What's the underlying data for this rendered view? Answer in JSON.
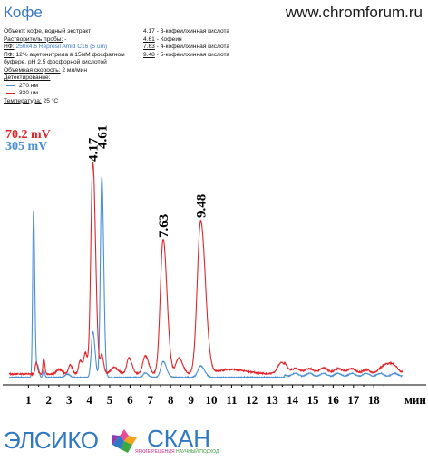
{
  "page": {
    "title": "Кофе",
    "site": "www.chromforum.ru"
  },
  "meta": {
    "object_label": "Объект:",
    "object_value": "кофе, водный экстракт",
    "solvent_label": "Растворитель пробы:",
    "solvent_value": "-",
    "sp_label": "НФ:",
    "sp_value": "250x4.6 Reprosil Amid C16 (5 um)",
    "mp_label": "ПФ:",
    "mp_value_1": "12% ацетонитрила в 15мМ фосфатном",
    "mp_value_2": "буфере, pH 2.5 фосфорной кислотой",
    "flow_label": "Объемная скорость:",
    "flow_value": "2 мл/мин",
    "detect_label": "Детектирование:",
    "detect_270": "270 нм",
    "detect_330": "330 нм",
    "temp_label": "Температура:",
    "temp_value": "25 °C"
  },
  "peaks_list": [
    {
      "rt": "4.17",
      "name": "- 3-кофеилхинная кислота"
    },
    {
      "rt": "4.61",
      "name": "- Кофеин"
    },
    {
      "rt": "7.63",
      "name": "- 4-кофеилхинная кислота"
    },
    {
      "rt": "9.48",
      "name": "- 5-кофеилхинная кислота"
    }
  ],
  "logo": {
    "left": "ЭЛСИКО",
    "right": "СКАН",
    "tag_pink": "ЯРКИЕ РЕШЕНИЯ",
    "tag_green": "НАУЧНЫЙ ПОДХОД"
  },
  "colors": {
    "trace_330": "#e0262b",
    "trace_270": "#4a8fd6",
    "axis": "#000000"
  },
  "chart_data": {
    "type": "line",
    "xlabel": "мин",
    "xlim": [
      0,
      20
    ],
    "x_ticks": [
      1,
      2,
      3,
      4,
      5,
      6,
      7,
      8,
      9,
      10,
      11,
      12,
      13,
      14,
      15,
      16,
      17,
      18
    ],
    "x_tick_labels": [
      "1",
      "2",
      "3",
      "4",
      "5",
      "6",
      "7",
      "8",
      "9",
      "10",
      "11",
      "12",
      "13",
      "14",
      "15",
      "16",
      "17",
      "18"
    ],
    "scale_labels": [
      {
        "text": "70.2 mV",
        "series": "330 нм"
      },
      {
        "text": "305 mV",
        "series": "270 нм"
      }
    ],
    "peak_labels": [
      {
        "x": 4.17,
        "text": "4.17"
      },
      {
        "x": 4.61,
        "text": "4.61"
      },
      {
        "x": 7.63,
        "text": "7.63"
      },
      {
        "x": 9.48,
        "text": "9.48"
      }
    ],
    "series": [
      {
        "name": "330 нм",
        "color": "#e0262b",
        "baseline": 0.02,
        "peaks": [
          {
            "x": 1.38,
            "h": 0.05,
            "w": 0.05
          },
          {
            "x": 1.75,
            "h": 0.07,
            "w": 0.04
          },
          {
            "x": 2.5,
            "h": 0.02,
            "w": 0.12
          },
          {
            "x": 3.05,
            "h": 0.04,
            "w": 0.08
          },
          {
            "x": 3.55,
            "h": 0.06,
            "w": 0.08
          },
          {
            "x": 3.8,
            "h": 0.09,
            "w": 0.07
          },
          {
            "x": 4.17,
            "h": 0.93,
            "w": 0.1
          },
          {
            "x": 4.61,
            "h": 0.08,
            "w": 0.07
          },
          {
            "x": 5.2,
            "h": 0.03,
            "w": 0.15
          },
          {
            "x": 5.95,
            "h": 0.07,
            "w": 0.11
          },
          {
            "x": 6.75,
            "h": 0.08,
            "w": 0.12
          },
          {
            "x": 7.63,
            "h": 0.59,
            "w": 0.14
          },
          {
            "x": 8.4,
            "h": 0.07,
            "w": 0.14
          },
          {
            "x": 9.48,
            "h": 0.67,
            "w": 0.17
          },
          {
            "x": 10.9,
            "h": 0.02,
            "w": 0.6
          },
          {
            "x": 13.45,
            "h": 0.05,
            "w": 0.18
          },
          {
            "x": 14.4,
            "h": 0.008,
            "w": 0.3
          },
          {
            "x": 15.5,
            "h": 0.008,
            "w": 0.3
          },
          {
            "x": 16.6,
            "h": 0.008,
            "w": 0.3
          },
          {
            "x": 18.7,
            "h": 0.04,
            "w": 0.22
          }
        ]
      },
      {
        "name": "270 нм",
        "color": "#4a8fd6",
        "baseline": 0.005,
        "peaks": [
          {
            "x": 1.25,
            "h": 0.73,
            "w": 0.045
          },
          {
            "x": 1.45,
            "h": 0.05,
            "w": 0.05
          },
          {
            "x": 1.75,
            "h": 0.03,
            "w": 0.04
          },
          {
            "x": 2.9,
            "h": 0.015,
            "w": 0.1
          },
          {
            "x": 4.17,
            "h": 0.2,
            "w": 0.08
          },
          {
            "x": 4.61,
            "h": 0.88,
            "w": 0.07
          },
          {
            "x": 6.75,
            "h": 0.02,
            "w": 0.1
          },
          {
            "x": 7.63,
            "h": 0.07,
            "w": 0.12
          },
          {
            "x": 9.48,
            "h": 0.05,
            "w": 0.14
          }
        ]
      }
    ]
  }
}
